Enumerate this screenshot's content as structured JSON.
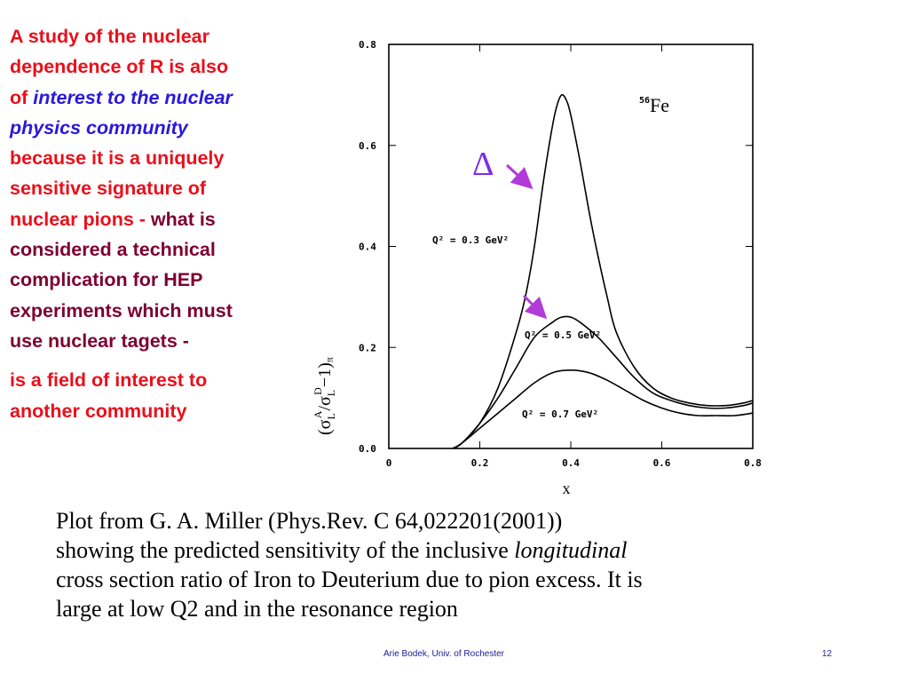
{
  "text_block": {
    "l1": "A study of the nuclear",
    "l2": "dependence of R is also",
    "l3a": "of ",
    "l3b": "interest to the nuclear",
    "l4": "physics community",
    "l5": "because it is a uniquely",
    "l6": "sensitive signature of",
    "l7a": "nuclear pions - ",
    "l7b": "what is",
    "l8": "considered a technical",
    "l9": "complication for HEP",
    "l10": "experiments which must",
    "l11": "use nuclear tagets -",
    "p2a": " is a field of interest to",
    "p2b": "another community"
  },
  "caption": {
    "l1": "Plot from G. A. Miller (Phys.Rev. C 64,022201(2001))",
    "l2a": "showing the predicted sensitivity  of the inclusive ",
    "l2b": "longitudinal",
    "l3": "cross section ratio of Iron to Deuterium due  to pion excess. It is",
    "l4": "large at low Q2 and in the resonance region"
  },
  "footer": {
    "credit": "Arie Bodek,  Univ. of Rochester",
    "page": "12"
  },
  "annotations": {
    "delta": "Δ",
    "arrow_color": "#b23ad8",
    "delta_color": "#7a2cf0"
  },
  "chart_data": {
    "type": "line",
    "nucleus_prefix": "56",
    "nucleus": "Fe",
    "xlabel": "x",
    "ylabel_parts": [
      "(σ",
      "L",
      "A",
      "/σ",
      "L",
      "D",
      "−1)",
      "π"
    ],
    "xlim": [
      0,
      0.8
    ],
    "ylim": [
      0,
      0.8
    ],
    "x_ticks": [
      "0",
      "0.2",
      "0.4",
      "0.6",
      "0.8"
    ],
    "y_ticks": [
      "0.0",
      "0.2",
      "0.4",
      "0.6",
      "0.8"
    ],
    "x_tick_values": [
      0,
      0.2,
      0.4,
      0.6,
      0.8
    ],
    "y_tick_values": [
      0,
      0.2,
      0.4,
      0.6,
      0.8
    ],
    "series": [
      {
        "name": "Q² = 0.3 GeV²",
        "x": [
          0.14,
          0.16,
          0.2,
          0.24,
          0.28,
          0.3,
          0.32,
          0.34,
          0.36,
          0.37,
          0.38,
          0.39,
          0.4,
          0.42,
          0.44,
          0.46,
          0.48,
          0.5,
          0.54,
          0.58,
          0.62,
          0.66,
          0.7,
          0.74,
          0.78,
          0.8
        ],
        "y": [
          0.0,
          0.01,
          0.05,
          0.12,
          0.23,
          0.3,
          0.4,
          0.53,
          0.64,
          0.68,
          0.7,
          0.69,
          0.66,
          0.57,
          0.47,
          0.38,
          0.3,
          0.23,
          0.16,
          0.12,
          0.1,
          0.09,
          0.085,
          0.085,
          0.09,
          0.095
        ]
      },
      {
        "name": "Q² = 0.5 GeV²",
        "x": [
          0.14,
          0.16,
          0.2,
          0.24,
          0.28,
          0.32,
          0.36,
          0.38,
          0.4,
          0.42,
          0.46,
          0.5,
          0.54,
          0.58,
          0.62,
          0.66,
          0.7,
          0.74,
          0.78,
          0.8
        ],
        "y": [
          0.0,
          0.01,
          0.05,
          0.1,
          0.16,
          0.22,
          0.25,
          0.26,
          0.26,
          0.25,
          0.22,
          0.18,
          0.14,
          0.11,
          0.095,
          0.085,
          0.08,
          0.08,
          0.085,
          0.09
        ]
      },
      {
        "name": "Q² = 0.7 GeV²",
        "x": [
          0.14,
          0.16,
          0.2,
          0.24,
          0.28,
          0.32,
          0.36,
          0.4,
          0.44,
          0.48,
          0.52,
          0.56,
          0.6,
          0.64,
          0.68,
          0.72,
          0.76,
          0.8
        ],
        "y": [
          0.0,
          0.01,
          0.04,
          0.07,
          0.1,
          0.13,
          0.15,
          0.155,
          0.15,
          0.135,
          0.115,
          0.095,
          0.08,
          0.07,
          0.065,
          0.065,
          0.065,
          0.07
        ]
      }
    ],
    "curve_labels": [
      {
        "text": "Q² = 0.3 GeV²",
        "series": 0
      },
      {
        "text": "Q² = 0.5 GeV²",
        "series": 1
      },
      {
        "text": "Q² = 0.7 GeV²",
        "series": 2
      }
    ]
  }
}
